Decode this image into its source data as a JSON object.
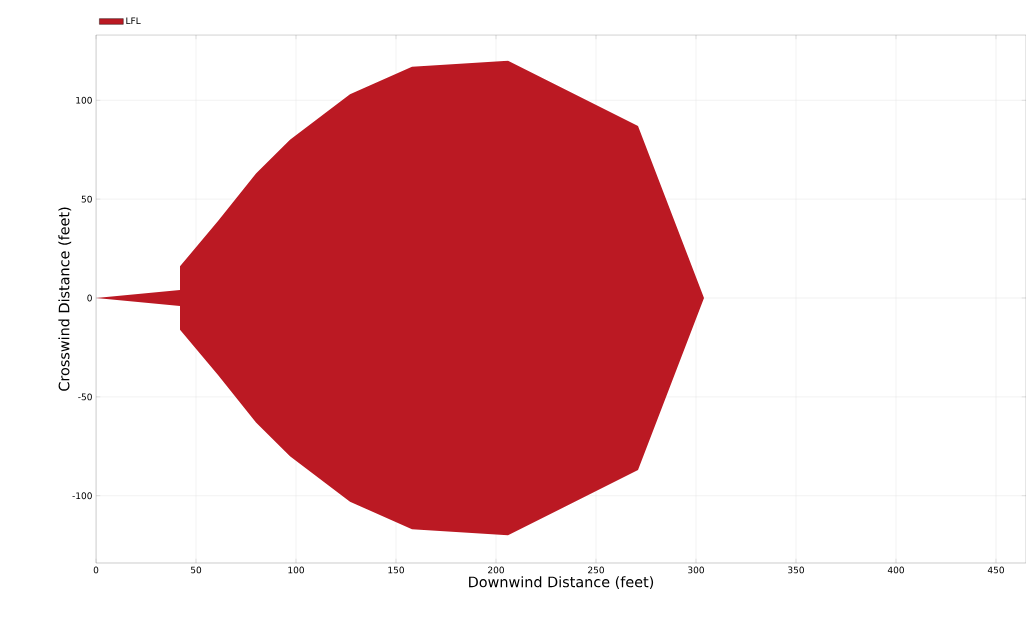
{
  "chart_data": {
    "type": "area",
    "xlabel": "Downwind Distance (feet)",
    "ylabel": "Crosswind Distance (feet)",
    "series": [
      {
        "name": "LFL",
        "color": "#bb1923",
        "x": [
          0,
          42,
          42,
          61,
          80,
          97,
          127,
          158,
          206,
          271,
          304
        ],
        "values": [
          0,
          4,
          16,
          39,
          63,
          80,
          103,
          117,
          120,
          87,
          0
        ]
      },
      {
        "color": "#bb1923",
        "x": [
          0,
          42,
          42,
          61,
          80,
          97,
          127,
          158,
          206,
          271,
          304
        ],
        "values": [
          0,
          -4,
          -16,
          -39,
          -63,
          -80,
          -103,
          -117,
          -120,
          -87,
          0
        ]
      }
    ],
    "xlim": [
      0,
      465
    ],
    "ylim": [
      -134,
      133
    ],
    "xticks": [
      0,
      50,
      100,
      150,
      200,
      250,
      300,
      350,
      400,
      450
    ],
    "yticks": [
      -100,
      -50,
      0,
      50,
      100
    ],
    "grid": true,
    "legend": "top left"
  }
}
